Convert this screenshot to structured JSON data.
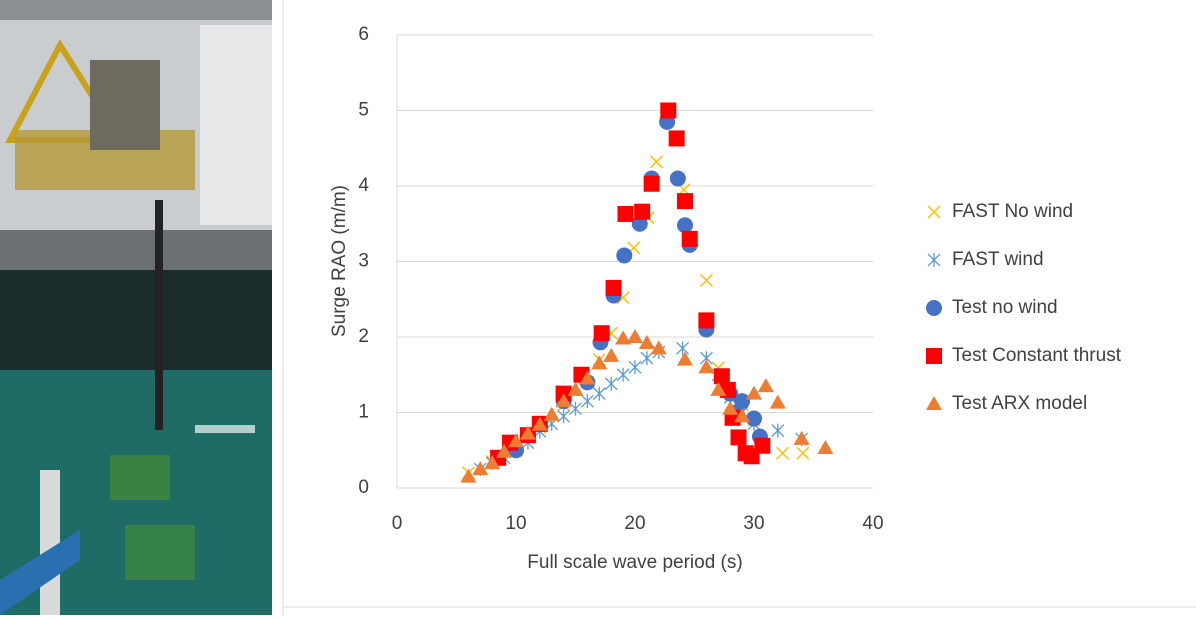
{
  "chart_data": {
    "type": "scatter",
    "x_label": "Full scale wave period (s)",
    "y_label": "Surge RAO (m/m)",
    "xlim": [
      0,
      40
    ],
    "xticks": [
      0,
      10,
      20,
      30,
      40
    ],
    "ylim": [
      0,
      6
    ],
    "yticks": [
      0,
      1,
      2,
      3,
      4,
      5,
      6
    ],
    "grid": true,
    "legend": "right",
    "series": [
      {
        "name": "FAST No wind",
        "color": "#ffc000",
        "marker": "x",
        "x": [
          6,
          8,
          10,
          12,
          14,
          16,
          17,
          18,
          19,
          19.9,
          21.1,
          21.8,
          24.1,
          26,
          27,
          29,
          30,
          32.4,
          34.1
        ],
        "values": [
          0.2,
          0.35,
          0.55,
          0.8,
          1.1,
          1.4,
          1.7,
          2.05,
          2.52,
          3.18,
          3.58,
          4.32,
          3.95,
          2.75,
          1.59,
          1.1,
          0.9,
          0.46,
          0.46
        ]
      },
      {
        "name": "FAST wind",
        "color": "#5b9bd5",
        "marker": "asterisk",
        "x": [
          7,
          8,
          9,
          10,
          11,
          12,
          13,
          14,
          15,
          16,
          17,
          18,
          19,
          20,
          21,
          22,
          24,
          26,
          27,
          28,
          29,
          30,
          32,
          34
        ],
        "values": [
          0.25,
          0.33,
          0.4,
          0.5,
          0.6,
          0.75,
          0.85,
          0.95,
          1.05,
          1.15,
          1.25,
          1.38,
          1.5,
          1.6,
          1.72,
          1.8,
          1.85,
          1.72,
          1.5,
          1.2,
          1.0,
          0.85,
          0.76,
          0.65
        ]
      },
      {
        "name": "Test no wind",
        "color": "#4472c4",
        "marker": "circle",
        "x": [
          10,
          12,
          14,
          16,
          17.1,
          18.2,
          19.1,
          20.4,
          21.4,
          22.7,
          23.6,
          24.2,
          24.6,
          26,
          28,
          28.5,
          29,
          30,
          30.5
        ],
        "values": [
          0.5,
          0.85,
          1.15,
          1.4,
          1.93,
          2.55,
          3.08,
          3.5,
          4.1,
          4.85,
          4.1,
          3.48,
          3.22,
          2.1,
          1.25,
          1.0,
          1.15,
          0.92,
          0.68
        ]
      },
      {
        "name": "Test Constant thrust",
        "color": "#ff0000",
        "marker": "square",
        "x": [
          8.5,
          9.5,
          11,
          12,
          14,
          15.5,
          17.2,
          18.2,
          19.2,
          20.6,
          21.4,
          22.8,
          23.5,
          24.2,
          24.6,
          26,
          27.3,
          27.8,
          28.2,
          28.7,
          29.3,
          29.8,
          30.7
        ],
        "values": [
          0.4,
          0.6,
          0.7,
          0.85,
          1.25,
          1.5,
          2.05,
          2.65,
          3.63,
          3.66,
          4.03,
          5.0,
          4.63,
          3.8,
          3.3,
          2.22,
          1.48,
          1.3,
          0.93,
          0.67,
          0.46,
          0.42,
          0.56
        ]
      },
      {
        "name": "Test ARX model",
        "color": "#ed7d31",
        "marker": "triangle",
        "x": [
          6,
          7,
          8,
          9,
          10,
          11,
          12,
          13,
          14,
          15,
          16,
          17,
          18,
          19,
          20,
          21,
          22,
          24.2,
          26,
          27,
          28,
          29,
          30,
          31,
          32,
          34,
          36
        ],
        "values": [
          0.15,
          0.25,
          0.33,
          0.48,
          0.62,
          0.72,
          0.84,
          0.97,
          1.15,
          1.3,
          1.45,
          1.65,
          1.75,
          1.98,
          2.0,
          1.92,
          1.85,
          1.7,
          1.6,
          1.3,
          1.05,
          0.95,
          1.25,
          1.35,
          1.13,
          0.65,
          0.53
        ]
      }
    ]
  }
}
